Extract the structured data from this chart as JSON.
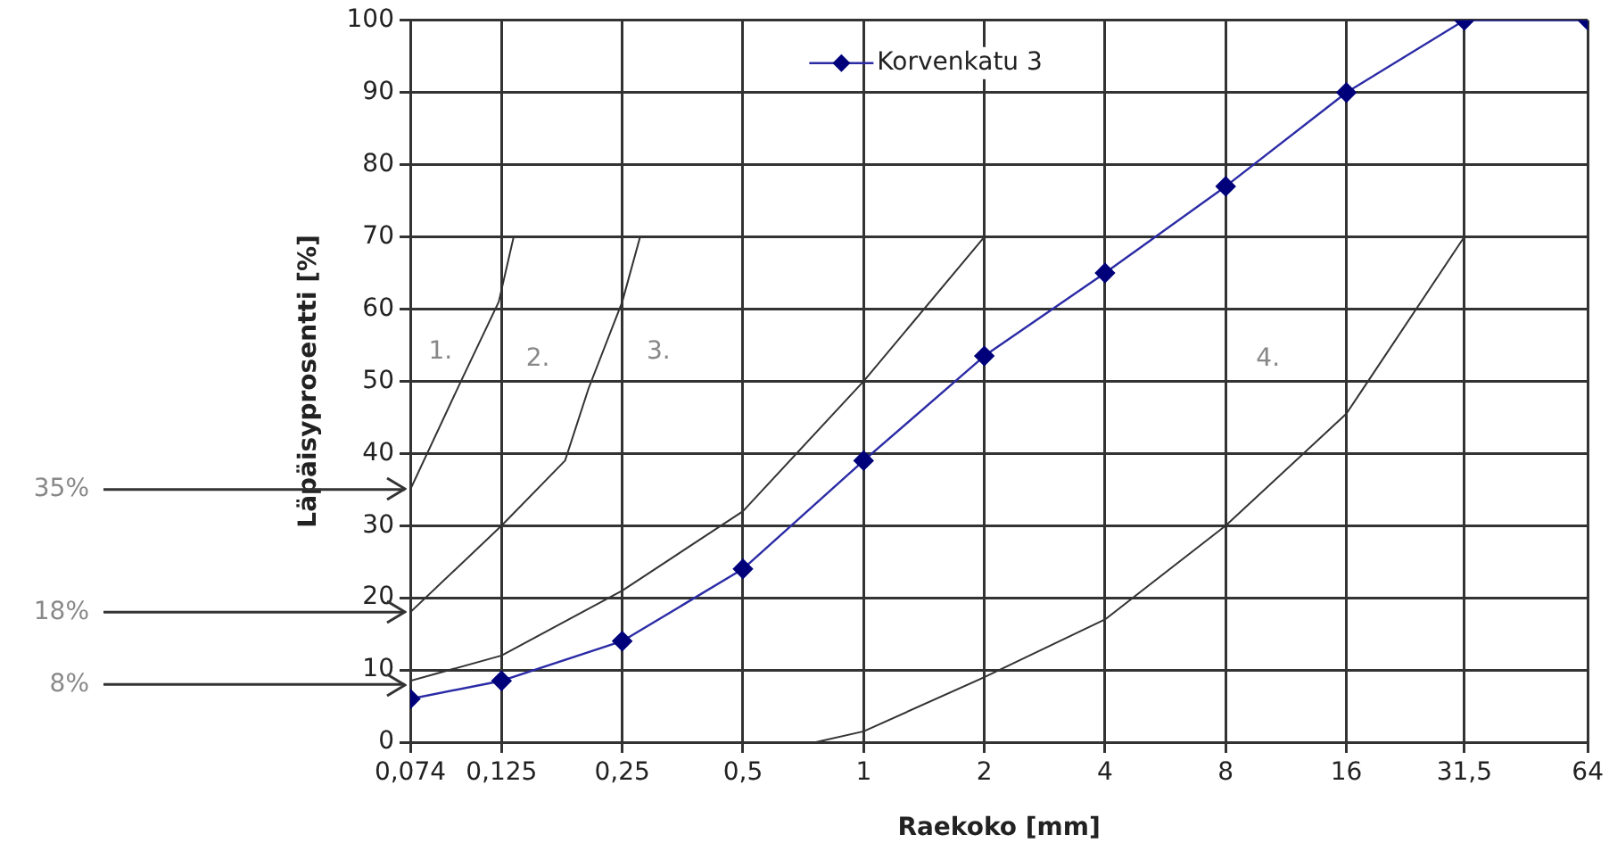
{
  "chart_data": {
    "type": "line",
    "xlabel": "Raekoko [mm]",
    "ylabel": "Läpäisyprosentti [%]",
    "xlim": [
      0.074,
      64
    ],
    "xticks": [
      {
        "value": 0.074,
        "label": "0,074"
      },
      {
        "value": 0.125,
        "label": "0,125"
      },
      {
        "value": 0.25,
        "label": "0,25"
      },
      {
        "value": 0.5,
        "label": "0,5"
      },
      1,
      2,
      4,
      8,
      16,
      {
        "value": 31.5,
        "label": "31,5"
      },
      64
    ],
    "ylim": [
      0,
      100
    ],
    "yticks": [
      0,
      10,
      20,
      30,
      40,
      50,
      60,
      70,
      80,
      90,
      100
    ],
    "grid": true,
    "legend": "top",
    "line_style": "solid",
    "log": "x",
    "ref_lines": [
      {
        "axis": "y",
        "value": 35,
        "label": "35%"
      },
      {
        "axis": "y",
        "value": 18,
        "label": "18%"
      },
      {
        "axis": "y",
        "value": 8,
        "label": "8%"
      }
    ],
    "series": [
      {
        "name": "Korvenkatu 3",
        "color": "#2b2ba6",
        "marker": "diamond",
        "x": [
          0.074,
          0.125,
          0.25,
          0.5,
          1,
          2,
          4,
          8,
          16,
          31.5,
          64
        ],
        "values": [
          6,
          8.5,
          14,
          24,
          39,
          53.5,
          65,
          77,
          90,
          100,
          100
        ]
      },
      {
        "color": "#333333",
        "marker": "none",
        "x": [
          0.074,
          0.099,
          0.123,
          0.134
        ],
        "values": [
          35,
          50,
          61,
          70
        ]
      },
      {
        "color": "#333333",
        "marker": "none",
        "x": [
          0.074,
          0.125,
          0.18,
          0.206,
          0.25,
          0.277
        ],
        "values": [
          18,
          30,
          39,
          49,
          61,
          70
        ]
      },
      {
        "color": "#333333",
        "marker": "none",
        "x": [
          0.074,
          0.125,
          0.25,
          0.5,
          1,
          2
        ],
        "values": [
          8.5,
          12,
          21,
          32,
          50,
          70
        ]
      },
      {
        "color": "#333333",
        "marker": "none",
        "x": [
          0.76,
          1,
          2,
          4,
          8,
          16,
          31.5
        ],
        "values": [
          0,
          1.5,
          9,
          17,
          30,
          45.5,
          70
        ]
      }
    ],
    "annotations": [
      "1.",
      "2.",
      "3.",
      "4."
    ]
  }
}
